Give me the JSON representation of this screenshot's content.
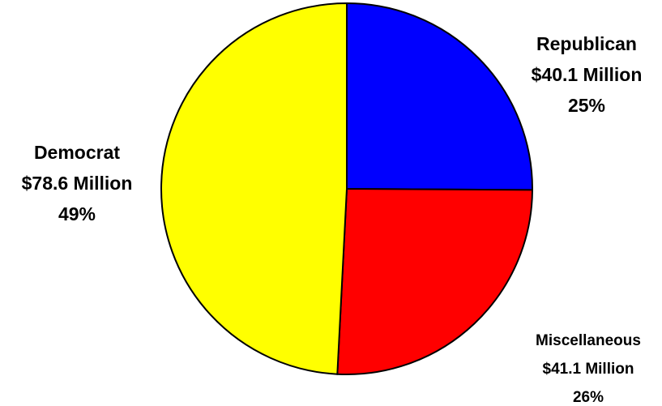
{
  "chart_data": {
    "type": "pie",
    "categories": [
      "Republican",
      "Miscellaneous",
      "Democrat"
    ],
    "values": [
      40.1,
      41.1,
      78.6
    ],
    "value_labels": [
      "$40.1 Million",
      "$41.1 Million",
      "$78.6 Million"
    ],
    "shares": [
      25,
      26,
      49
    ],
    "share_labels": [
      "25%",
      "26%",
      "49%"
    ],
    "colors": [
      "#0000ff",
      "#ff0000",
      "#ffff00"
    ]
  }
}
